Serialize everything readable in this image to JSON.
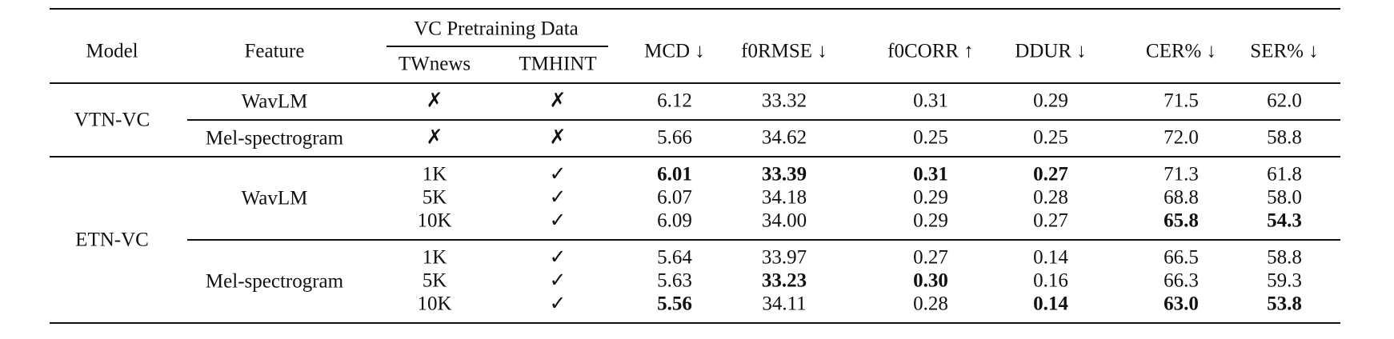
{
  "header": {
    "model": "Model",
    "feature": "Feature",
    "group": "VC Pretraining Data",
    "subcolumns": [
      "TWnews",
      "TMHINT"
    ],
    "metrics": [
      "MCD ↓",
      "f0RMSE ↓",
      "f0CORR ↑",
      "DDUR ↓",
      "CER% ↓",
      "SER% ↓"
    ]
  },
  "groups": [
    {
      "model": "VTN-VC",
      "features": [
        {
          "feature": "WavLM",
          "rows": [
            [
              "✗",
              "✗",
              "6.12",
              "33.32",
              "0.31",
              "0.29",
              "71.5",
              "62.0"
            ]
          ]
        },
        {
          "feature": "Mel-spectrogram",
          "rows": [
            [
              "✗",
              "✗",
              "5.66",
              "34.62",
              "0.25",
              "0.25",
              "72.0",
              "58.8"
            ]
          ]
        }
      ]
    },
    {
      "model": "ETN-VC",
      "features": [
        {
          "feature": "WavLM",
          "rows": [
            [
              "1K",
              "✓",
              {
                "text": "6.01",
                "bold": true
              },
              {
                "text": "33.39",
                "bold": true
              },
              {
                "text": "0.31",
                "bold": true
              },
              {
                "text": "0.27",
                "bold": true
              },
              "71.3",
              "61.8"
            ],
            [
              "5K",
              "✓",
              "6.07",
              "34.18",
              "0.29",
              "0.28",
              "68.8",
              "58.0"
            ],
            [
              "10K",
              "✓",
              "6.09",
              "34.00",
              "0.29",
              "0.27",
              {
                "text": "65.8",
                "bold": true
              },
              {
                "text": "54.3",
                "bold": true
              }
            ]
          ]
        },
        {
          "feature": "Mel-spectrogram",
          "rows": [
            [
              "1K",
              "✓",
              "5.64",
              "33.97",
              "0.27",
              "0.14",
              "66.5",
              "58.8"
            ],
            [
              "5K",
              "✓",
              "5.63",
              {
                "text": "33.23",
                "bold": true
              },
              {
                "text": "0.30",
                "bold": true
              },
              "0.16",
              "66.3",
              "59.3"
            ],
            [
              "10K",
              "✓",
              {
                "text": "5.56",
                "bold": true
              },
              "34.11",
              "0.28",
              {
                "text": "0.14",
                "bold": true
              },
              {
                "text": "63.0",
                "bold": true
              },
              {
                "text": "53.8",
                "bold": true
              }
            ]
          ]
        }
      ]
    }
  ]
}
